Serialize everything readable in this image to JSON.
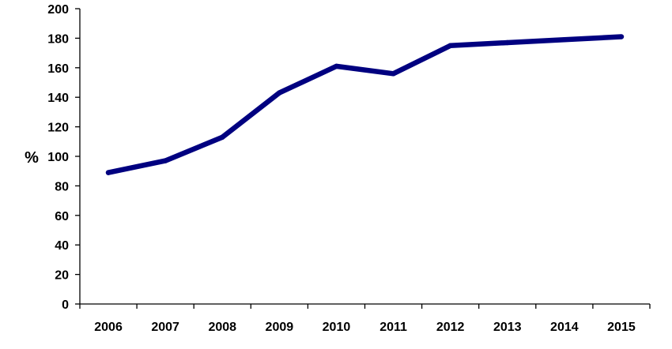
{
  "chart_data": {
    "type": "line",
    "title": "",
    "xlabel": "",
    "ylabel": "%",
    "x": [
      "2006",
      "2007",
      "2008",
      "2009",
      "2010",
      "2011",
      "2012",
      "2013",
      "2014",
      "2015"
    ],
    "y_ticks": [
      "0",
      "20",
      "40",
      "60",
      "80",
      "100",
      "120",
      "140",
      "160",
      "180",
      "200"
    ],
    "ylim": [
      0,
      200
    ],
    "grid": false,
    "legend": "none",
    "series": [
      {
        "values": [
          89,
          97,
          113,
          143,
          161,
          156,
          175,
          177,
          179,
          181
        ],
        "color": "#000080"
      }
    ]
  }
}
